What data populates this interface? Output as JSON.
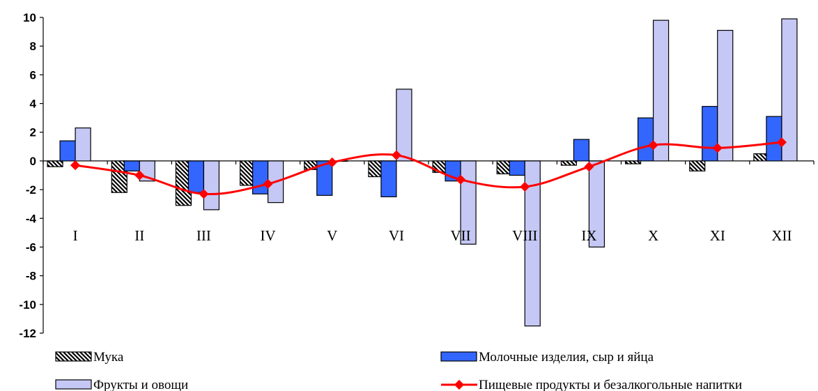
{
  "chart_data": {
    "type": "bar",
    "categories": [
      "I",
      "II",
      "III",
      "IV",
      "V",
      "VI",
      "VII",
      "VIII",
      "IX",
      "X",
      "XI",
      "XII"
    ],
    "ylim": [
      -12,
      10
    ],
    "yticks": [
      10,
      8,
      6,
      4,
      2,
      0,
      -2,
      -4,
      -6,
      -8,
      -10,
      -12
    ],
    "grid": false,
    "legend_position": "bottom",
    "series": [
      {
        "name": "Мука",
        "kind": "bar",
        "pattern": "diagonal-hatch",
        "color": "#000000",
        "values": [
          -0.4,
          -2.2,
          -3.1,
          -1.7,
          -0.6,
          -1.1,
          -0.8,
          -0.9,
          -0.3,
          -0.2,
          -0.7,
          0.5
        ]
      },
      {
        "name": "Молочные изделия, сыр и яйца",
        "kind": "bar",
        "color": "#3366ff",
        "values": [
          1.4,
          -0.7,
          -2.2,
          -2.3,
          -2.4,
          -2.5,
          -1.4,
          -1.0,
          1.5,
          3.0,
          3.8,
          3.1
        ]
      },
      {
        "name": "Фрукты и овощи",
        "kind": "bar",
        "color": "#c5c8f5",
        "values": [
          2.3,
          -1.4,
          -3.4,
          -2.9,
          0.0,
          5.0,
          -5.8,
          -11.5,
          -6.0,
          9.8,
          9.1,
          9.9
        ]
      },
      {
        "name": "Пищевые продукты и безалкогольные напитки",
        "kind": "line",
        "color": "#ff0000",
        "values": [
          -0.3,
          -1.0,
          -2.3,
          -1.6,
          -0.1,
          0.4,
          -1.3,
          -1.8,
          -0.4,
          1.1,
          0.9,
          1.3
        ]
      }
    ]
  }
}
